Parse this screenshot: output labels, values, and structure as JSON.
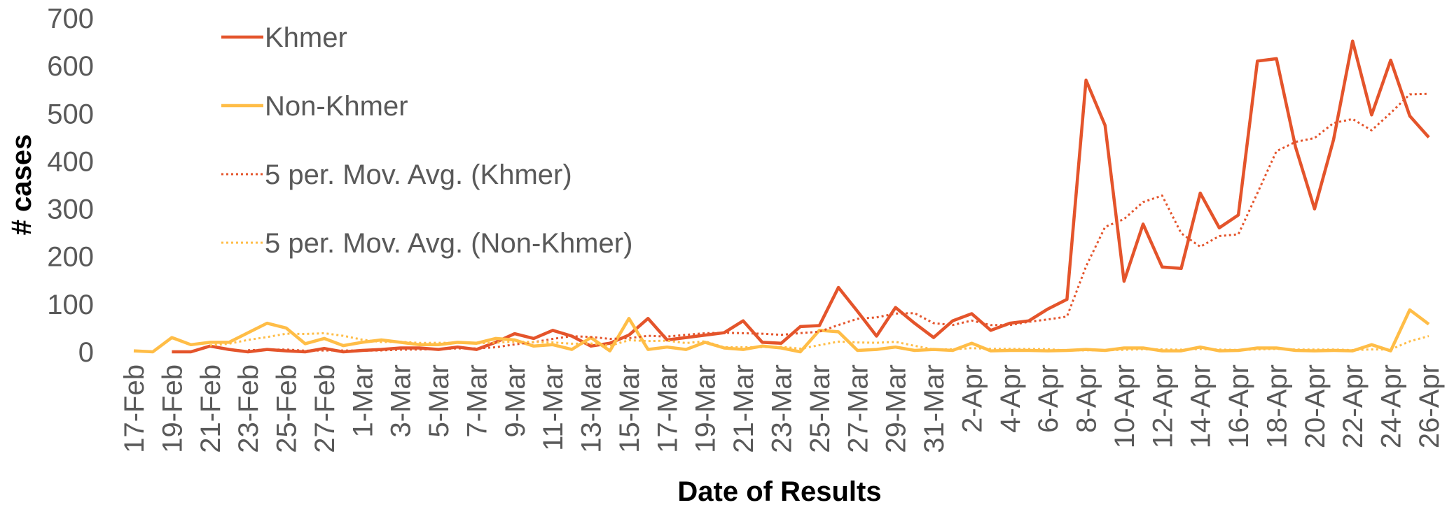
{
  "chart_data": {
    "type": "line",
    "x_label": "Date of Results",
    "y_label": "# cases",
    "categories": [
      "17-Feb",
      null,
      "19-Feb",
      null,
      "21-Feb",
      null,
      "23-Feb",
      null,
      "25-Feb",
      null,
      "27-Feb",
      null,
      "1-Mar",
      null,
      "3-Mar",
      null,
      "5-Mar",
      null,
      "7-Mar",
      null,
      "9-Mar",
      null,
      "11-Mar",
      null,
      "13-Mar",
      null,
      "15-Mar",
      null,
      "17-Mar",
      null,
      "19-Mar",
      null,
      "21-Mar",
      null,
      "23-Mar",
      null,
      "25-Mar",
      null,
      "27-Mar",
      null,
      "29-Mar",
      null,
      "31-Mar",
      null,
      "2-Apr",
      null,
      "4-Apr",
      null,
      "6-Apr",
      null,
      "8-Apr",
      null,
      "10-Apr",
      null,
      "12-Apr",
      null,
      "14-Apr",
      null,
      "16-Apr",
      null,
      "18-Apr",
      null,
      "20-Apr",
      null,
      "22-Apr",
      null,
      "24-Apr",
      null,
      "26-Apr"
    ],
    "series": [
      {
        "name": "Khmer",
        "color": "#e4542b",
        "style": "solid",
        "values": [
          null,
          null,
          0,
          0,
          12,
          5,
          0,
          5,
          2,
          0,
          7,
          0,
          3,
          5,
          8,
          8,
          5,
          10,
          5,
          20,
          38,
          28,
          45,
          33,
          12,
          18,
          35,
          70,
          25,
          30,
          35,
          40,
          65,
          20,
          18,
          53,
          55,
          135,
          85,
          33,
          93,
          60,
          30,
          65,
          80,
          45,
          60,
          65,
          90,
          110,
          570,
          475,
          148,
          268,
          178,
          175,
          333,
          260,
          287,
          610,
          615,
          430,
          300,
          445,
          652,
          497,
          612,
          495,
          450
        ]
      },
      {
        "name": "Non-Khmer",
        "color": "#ffbd47",
        "style": "solid",
        "values": [
          2,
          0,
          30,
          15,
          20,
          20,
          40,
          60,
          50,
          17,
          28,
          13,
          20,
          25,
          20,
          15,
          15,
          20,
          18,
          28,
          25,
          12,
          15,
          5,
          30,
          2,
          70,
          5,
          10,
          5,
          20,
          8,
          5,
          12,
          8,
          0,
          45,
          42,
          3,
          5,
          10,
          3,
          5,
          3,
          18,
          2,
          3,
          3,
          2,
          3,
          5,
          3,
          8,
          8,
          2,
          2,
          10,
          2,
          3,
          8,
          8,
          3,
          2,
          3,
          2,
          15,
          2,
          88,
          58
        ]
      },
      {
        "name": "5 per. Mov. Avg. (Khmer)",
        "color": "#e4542b",
        "style": "dotted",
        "values": [
          null,
          null,
          null,
          null,
          null,
          null,
          3.4,
          4.4,
          4.8,
          2.4,
          2.8,
          2.8,
          2.4,
          3,
          4.6,
          4.8,
          5.8,
          7.2,
          7.2,
          9.6,
          15.6,
          20.2,
          27.2,
          32.8,
          31.2,
          27.2,
          28.6,
          33.6,
          32,
          35.6,
          39,
          40,
          39,
          38,
          35.6,
          39.2,
          42.2,
          56.2,
          69.2,
          72.2,
          80.2,
          81.2,
          60.2,
          56.2,
          65.6,
          56,
          56,
          63,
          68,
          74,
          179,
          262,
          278.6,
          314.2,
          327.8,
          248.8,
          220.4,
          242.8,
          246.6,
          333,
          421,
          440.4,
          448.4,
          480,
          488.4,
          464.8,
          501.2,
          540.2,
          541.2
        ]
      },
      {
        "name": "5 per. Mov. Avg. (Non-Khmer)",
        "color": "#ffbd47",
        "style": "dotted",
        "values": [
          null,
          null,
          null,
          null,
          13.4,
          17,
          25,
          31,
          38,
          37.4,
          39,
          33.6,
          25.6,
          20.6,
          21.2,
          18.6,
          19,
          19,
          17.6,
          19.2,
          21.2,
          20.6,
          19.6,
          17,
          17.4,
          12.8,
          24.4,
          22.4,
          23.4,
          18.4,
          22,
          9.6,
          9.6,
          10,
          10.6,
          6.6,
          14,
          21.4,
          19.6,
          19,
          21,
          12.6,
          5.2,
          5.2,
          7.8,
          6.2,
          6.2,
          5.8,
          5.6,
          2.6,
          3.2,
          3.2,
          4.2,
          5.4,
          5.2,
          4.6,
          6,
          4.8,
          3.8,
          5,
          6.2,
          4.8,
          4.8,
          4.8,
          3.6,
          5,
          4.8,
          22,
          33
        ]
      }
    ],
    "ylim": [
      0,
      700
    ],
    "yticks": [
      0,
      100,
      200,
      300,
      400,
      500,
      600,
      700
    ],
    "grid": false,
    "legend": "top-left"
  }
}
